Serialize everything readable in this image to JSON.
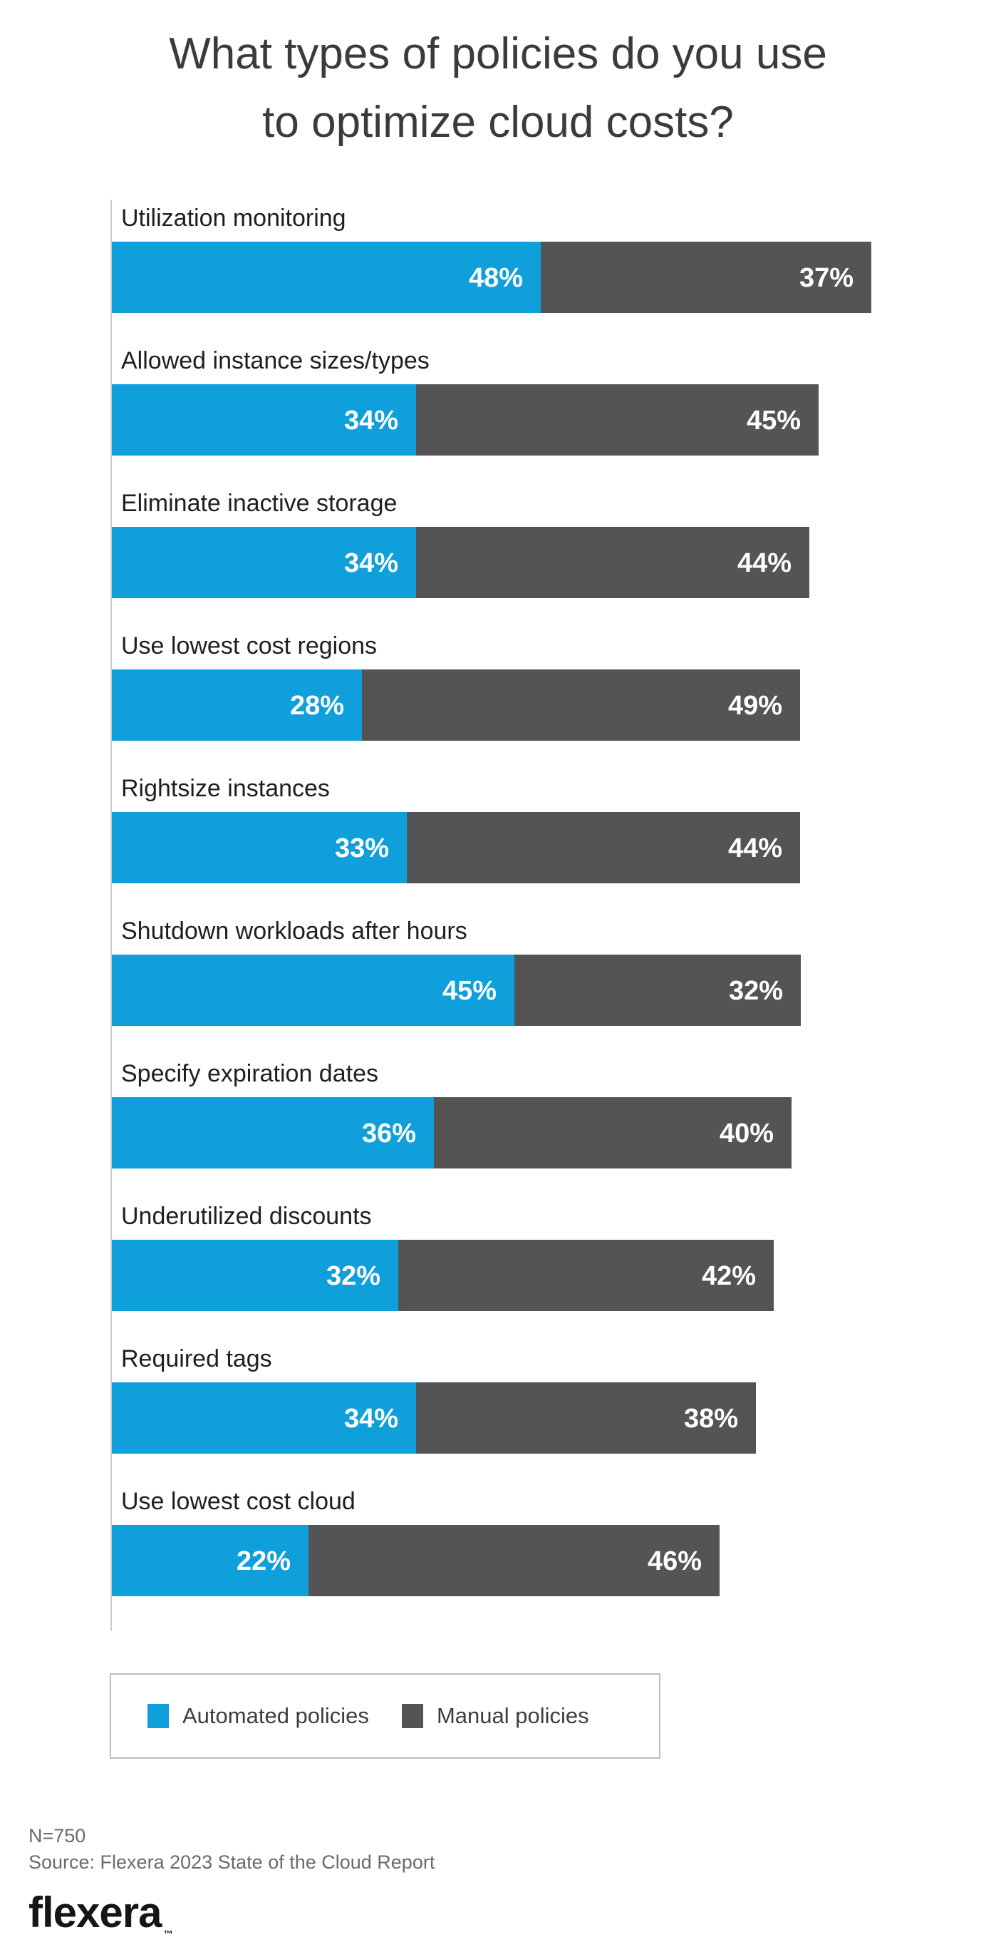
{
  "title": {
    "line1": "What types of policies do you use",
    "line2": "to optimize cloud costs?"
  },
  "chart_data": {
    "type": "bar",
    "orientation": "horizontal_stacked",
    "title": "What types of policies do you use to optimize cloud costs?",
    "categories": [
      "Utilization monitoring",
      "Allowed instance sizes/types",
      "Eliminate inactive storage",
      "Use lowest cost regions",
      "Rightsize instances",
      "Shutdown workloads after hours",
      "Specify expiration dates",
      "Underutilized discounts",
      "Required tags",
      "Use lowest cost cloud"
    ],
    "series": [
      {
        "name": "Automated policies",
        "color": "#0f9fdb",
        "values": [
          48,
          34,
          34,
          28,
          33,
          45,
          36,
          32,
          34,
          22
        ]
      },
      {
        "name": "Manual policies",
        "color": "#545456",
        "values": [
          37,
          45,
          44,
          49,
          44,
          32,
          40,
          42,
          38,
          46
        ]
      }
    ],
    "unit": "%",
    "value_labels": "inside_right_white",
    "xlim": [
      0,
      100
    ],
    "grid": false,
    "legend_position": "bottom"
  },
  "legend": {
    "items": [
      {
        "label": "Automated policies",
        "color": "#0f9fdb"
      },
      {
        "label": "Manual policies",
        "color": "#545456"
      }
    ]
  },
  "footer": {
    "sample_size": "N=750",
    "source": "Source: Flexera 2023 State of the Cloud Report",
    "logo_text": "flexera",
    "trademark": "™"
  }
}
